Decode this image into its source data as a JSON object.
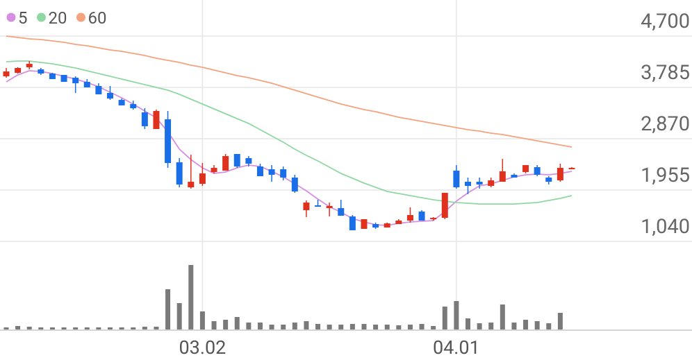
{
  "chart_data": {
    "type": "candlestick",
    "categories": [
      null,
      null,
      null,
      null,
      null,
      null,
      null,
      null,
      null,
      null,
      null,
      null,
      null,
      null,
      null,
      null,
      null,
      "03.02",
      null,
      null,
      null,
      null,
      null,
      null,
      null,
      null,
      null,
      null,
      null,
      null,
      null,
      null,
      null,
      null,
      null,
      null,
      null,
      null,
      null,
      "04.01",
      null,
      null,
      null,
      null,
      null,
      null,
      null,
      null,
      null,
      null
    ],
    "open": [
      3983,
      4045,
      4144,
      4106,
      4032,
      4008,
      3958,
      3884,
      3810,
      3686,
      3562,
      3488,
      3340,
      3043,
      3216,
      2450,
      2004,
      2066,
      2276,
      2301,
      2598,
      2524,
      2375,
      2326,
      2326,
      2178,
      1596,
      1683,
      1633,
      1633,
      1485,
      1263,
      1349,
      1287,
      1349,
      1411,
      1572,
      1436,
      1460,
      2301,
      2103,
      2103,
      2029,
      2103,
      2227,
      2276,
      2363,
      2178,
      2128,
      2326
    ],
    "high": [
      4131,
      4144,
      4255,
      4131,
      4045,
      4008,
      3983,
      3933,
      3859,
      3810,
      3587,
      3550,
      3414,
      3389,
      3365,
      2524,
      2586,
      2437,
      2400,
      2598,
      2598,
      2561,
      2425,
      2400,
      2375,
      2227,
      1770,
      1782,
      1732,
      1782,
      1510,
      1436,
      1374,
      1374,
      1436,
      1646,
      1596,
      1473,
      1906,
      2400,
      2178,
      2178,
      2178,
      2511,
      2252,
      2400,
      2400,
      2202,
      2425,
      2363
    ],
    "low": [
      3958,
      4032,
      4106,
      4008,
      3933,
      3884,
      3686,
      3785,
      3661,
      3562,
      3464,
      3389,
      3043,
      3043,
      2351,
      2004,
      1980,
      2029,
      2252,
      2301,
      2351,
      2375,
      2202,
      2103,
      2128,
      1906,
      1473,
      1658,
      1485,
      1497,
      1238,
      1263,
      1263,
      1287,
      1349,
      1374,
      1411,
      1411,
      1436,
      1980,
      1881,
      1980,
      2004,
      2103,
      2178,
      2252,
      2202,
      2054,
      2103,
      2326
    ],
    "close": [
      4069,
      4131,
      4205,
      4032,
      3933,
      3884,
      3859,
      3785,
      3661,
      3587,
      3464,
      3414,
      3093,
      3365,
      2437,
      2054,
      2103,
      2252,
      2351,
      2561,
      2375,
      2425,
      2202,
      2227,
      2178,
      1930,
      1732,
      1658,
      1671,
      1497,
      1238,
      1436,
      1287,
      1361,
      1411,
      1510,
      1411,
      1460,
      1906,
      2004,
      2029,
      2054,
      2128,
      2289,
      2178,
      2400,
      2227,
      2103,
      2351,
      2351
    ],
    "up_color": "#e0301e",
    "down_color": "#1a6fe8",
    "volume": [
      3,
      5,
      4,
      3,
      3,
      3,
      3,
      3,
      3,
      3,
      3,
      3,
      4,
      4,
      58,
      38,
      93,
      26,
      12,
      14,
      18,
      10,
      10,
      7,
      7,
      10,
      12,
      8,
      7,
      7,
      8,
      8,
      7,
      7,
      6,
      7,
      8,
      5,
      33,
      41,
      16,
      9,
      10,
      36,
      10,
      14,
      12,
      9,
      24,
      0
    ],
    "volume_color": "#7a7a7a",
    "series": [
      {
        "name": "5",
        "color": "#d68ee2",
        "values": [
          3884,
          4008,
          4082,
          4069,
          4032,
          3983,
          3933,
          3872,
          3797,
          3698,
          3600,
          3488,
          3365,
          3241,
          2994,
          2685,
          2499,
          2351,
          2252,
          2276,
          2351,
          2400,
          2375,
          2289,
          2190,
          2066,
          1942,
          1794,
          1658,
          1559,
          1448,
          1386,
          1337,
          1324,
          1361,
          1386,
          1399,
          1411,
          1572,
          1757,
          1906,
          2029,
          2066,
          2128,
          2190,
          2227,
          2239,
          2227,
          2252,
          2289
        ]
      },
      {
        "name": "20",
        "color": "#8fd8a2",
        "values": [
          4243,
          4255,
          4255,
          4230,
          4205,
          4168,
          4131,
          4082,
          4032,
          3983,
          3933,
          3884,
          3834,
          3785,
          3736,
          3661,
          3575,
          3488,
          3402,
          3315,
          3229,
          3142,
          3031,
          2919,
          2808,
          2685,
          2573,
          2474,
          2363,
          2252,
          2165,
          2079,
          2004,
          1930,
          1893,
          1856,
          1819,
          1782,
          1757,
          1732,
          1720,
          1707,
          1707,
          1707,
          1707,
          1720,
          1732,
          1770,
          1807,
          1856
        ]
      },
      {
        "name": "60",
        "color": "#f4a37e",
        "values": [
          4700,
          4675,
          4651,
          4638,
          4613,
          4589,
          4552,
          4527,
          4490,
          4453,
          4428,
          4391,
          4354,
          4304,
          4267,
          4230,
          4181,
          4144,
          4094,
          4045,
          3995,
          3958,
          3909,
          3859,
          3797,
          3736,
          3674,
          3612,
          3550,
          3488,
          3439,
          3389,
          3352,
          3303,
          3253,
          3216,
          3179,
          3142,
          3105,
          3068,
          3031,
          3006,
          2969,
          2944,
          2907,
          2870,
          2833,
          2796,
          2759,
          2722
        ]
      }
    ],
    "ylim": [
      1040,
      5343
    ],
    "yticks": [
      {
        "value": 4700,
        "label": "4,700"
      },
      {
        "value": 3785,
        "label": "3,785"
      },
      {
        "value": 2870,
        "label": "2,870"
      },
      {
        "value": 1955,
        "label": "1,955"
      },
      {
        "value": 1040,
        "label": "1,040"
      }
    ],
    "grid": true
  }
}
